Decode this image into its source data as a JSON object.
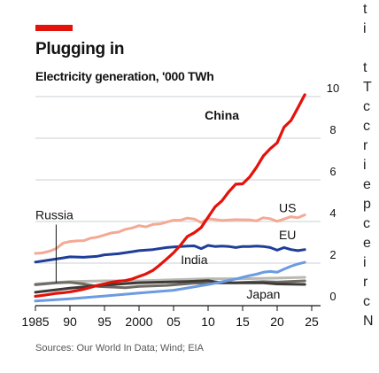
{
  "header": {
    "title": "Plugging in",
    "subtitle": "Electricity generation, '000 TWh"
  },
  "source": "Sources: Our World In Data; Wind; EIA",
  "colors": {
    "accent": "#e3120b",
    "china": "#e3120b",
    "us": "#f4a994",
    "eu": "#1f3e99",
    "india": "#6b9be0",
    "russia": "#6f6a64",
    "japan": "#3d3a38",
    "other": "#b9b9b2"
  },
  "cutoff_text": [
    "t",
    "i",
    "t",
    "T",
    "c",
    "c",
    "r",
    "i",
    "e",
    "p",
    "c",
    "e",
    "i",
    "r",
    "c",
    "N"
  ],
  "chart_data": {
    "type": "line",
    "title": "Plugging in",
    "subtitle": "Electricity generation, '000 TWh",
    "ylim": [
      0,
      10
    ],
    "yticks": [
      0,
      2,
      4,
      6,
      8,
      10
    ],
    "xlim": [
      1985,
      2025
    ],
    "x_tick_values": [
      1985,
      1990,
      1995,
      2000,
      2005,
      2010,
      2015,
      2020,
      2025
    ],
    "x_tick_labels": [
      "1985",
      "90",
      "95",
      "2000",
      "05",
      "10",
      "15",
      "20",
      "25"
    ],
    "grid": true,
    "y_axis_side": "right",
    "series": [
      {
        "name": "China",
        "label_x": 2012,
        "label_y": 8.9,
        "color_key": "china",
        "x": [
          1985,
          1986,
          1987,
          1988,
          1989,
          1990,
          1991,
          1992,
          1993,
          1994,
          1995,
          1996,
          1997,
          1998,
          1999,
          2000,
          2001,
          2002,
          2003,
          2004,
          2005,
          2006,
          2007,
          2008,
          2009,
          2010,
          2011,
          2012,
          2013,
          2014,
          2015,
          2016,
          2017,
          2018,
          2019,
          2020,
          2021,
          2022,
          2023,
          2024
        ],
        "y": [
          0.41,
          0.45,
          0.5,
          0.55,
          0.58,
          0.62,
          0.68,
          0.75,
          0.84,
          0.93,
          1.0,
          1.08,
          1.13,
          1.16,
          1.24,
          1.36,
          1.48,
          1.65,
          1.91,
          2.2,
          2.5,
          2.86,
          3.28,
          3.46,
          3.71,
          4.21,
          4.7,
          4.99,
          5.43,
          5.79,
          5.81,
          6.13,
          6.6,
          7.15,
          7.5,
          7.78,
          8.53,
          8.85,
          9.46,
          10.09
        ]
      },
      {
        "name": "US",
        "label_x": 2021.5,
        "label_y": 4.45,
        "color_key": "us",
        "x": [
          1985,
          1986,
          1987,
          1988,
          1989,
          1990,
          1991,
          1992,
          1993,
          1994,
          1995,
          1996,
          1997,
          1998,
          1999,
          2000,
          2001,
          2002,
          2003,
          2004,
          2005,
          2006,
          2007,
          2008,
          2009,
          2010,
          2011,
          2012,
          2013,
          2014,
          2015,
          2016,
          2017,
          2018,
          2019,
          2020,
          2021,
          2022,
          2023,
          2024
        ],
        "y": [
          2.47,
          2.49,
          2.57,
          2.7,
          2.96,
          3.04,
          3.07,
          3.08,
          3.2,
          3.25,
          3.35,
          3.45,
          3.49,
          3.62,
          3.69,
          3.8,
          3.74,
          3.86,
          3.88,
          3.97,
          4.06,
          4.06,
          4.16,
          4.12,
          3.95,
          4.13,
          4.1,
          4.05,
          4.07,
          4.09,
          4.08,
          4.08,
          4.03,
          4.18,
          4.13,
          4.01,
          4.12,
          4.23,
          4.18,
          4.32
        ]
      },
      {
        "name": "EU",
        "label_x": 2021.5,
        "label_y": 3.15,
        "color_key": "eu",
        "x": [
          1985,
          1987,
          1989,
          1990,
          1992,
          1994,
          1995,
          1997,
          1999,
          2000,
          2002,
          2004,
          2005,
          2006,
          2007,
          2008,
          2009,
          2010,
          2011,
          2012,
          2013,
          2014,
          2015,
          2016,
          2017,
          2018,
          2019,
          2020,
          2021,
          2022,
          2023,
          2024
        ],
        "y": [
          2.05,
          2.15,
          2.25,
          2.3,
          2.28,
          2.33,
          2.4,
          2.45,
          2.55,
          2.6,
          2.65,
          2.75,
          2.78,
          2.8,
          2.82,
          2.83,
          2.7,
          2.85,
          2.8,
          2.82,
          2.8,
          2.75,
          2.8,
          2.8,
          2.82,
          2.8,
          2.75,
          2.62,
          2.75,
          2.65,
          2.6,
          2.65
        ]
      },
      {
        "name": "India",
        "label_x": 2008,
        "label_y": 1.95,
        "color_key": "india",
        "x": [
          1985,
          1990,
          1995,
          2000,
          2005,
          2010,
          2012,
          2014,
          2015,
          2016,
          2017,
          2018,
          2019,
          2020,
          2021,
          2022,
          2023,
          2024
        ],
        "y": [
          0.18,
          0.29,
          0.42,
          0.56,
          0.7,
          0.97,
          1.1,
          1.24,
          1.32,
          1.4,
          1.47,
          1.56,
          1.6,
          1.56,
          1.71,
          1.85,
          1.96,
          2.04
        ]
      },
      {
        "name": "Russia",
        "label_x": 1985,
        "label_y": 4.1,
        "color_key": "russia",
        "x": [
          1985,
          1988,
          1990,
          1992,
          1994,
          1996,
          1998,
          2000,
          2004,
          2008,
          2010,
          2014,
          2018,
          2020,
          2024
        ],
        "y": [
          0.96,
          1.05,
          1.08,
          1.0,
          0.88,
          0.85,
          0.82,
          0.88,
          0.93,
          1.04,
          1.04,
          1.06,
          1.11,
          1.09,
          1.15
        ]
      },
      {
        "name": "Japan",
        "label_x": 2018,
        "label_y": 0.3,
        "color_key": "japan",
        "x": [
          1985,
          1990,
          1995,
          2000,
          2005,
          2007,
          2010,
          2011,
          2012,
          2014,
          2018,
          2020,
          2024
        ],
        "y": [
          0.6,
          0.8,
          0.95,
          1.06,
          1.1,
          1.12,
          1.16,
          1.1,
          1.06,
          1.05,
          1.05,
          1.0,
          0.98
        ]
      },
      {
        "name": "",
        "label_x": null,
        "label_y": null,
        "color_key": "other",
        "x": [
          1985,
          1990,
          1995,
          2000,
          2005,
          2010,
          2015,
          2020,
          2024
        ],
        "y": [
          1.0,
          1.12,
          1.15,
          1.15,
          1.2,
          1.25,
          1.25,
          1.28,
          1.32
        ]
      }
    ],
    "annotations": [
      {
        "text": "Russia",
        "points_to_x": 1988,
        "points_to_y": 1.05
      }
    ]
  }
}
